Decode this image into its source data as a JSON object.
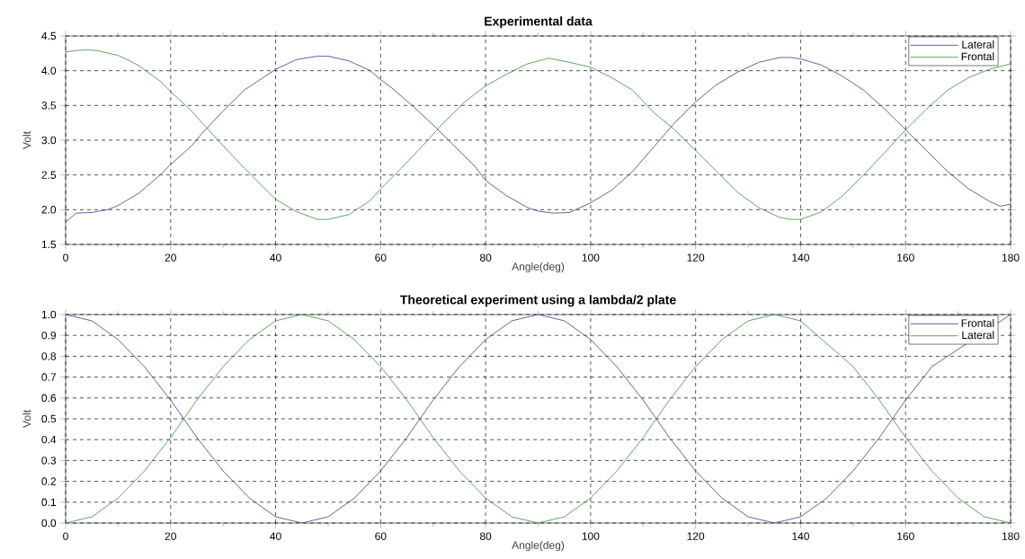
{
  "chart_data": [
    {
      "type": "line",
      "title": "Experimental data",
      "xlabel": "Angle(deg)",
      "ylabel": "Volt",
      "xlim": [
        0,
        180
      ],
      "ylim": [
        1.5,
        4.5
      ],
      "xticks": [
        0,
        20,
        40,
        60,
        80,
        100,
        120,
        140,
        160,
        180
      ],
      "yticks": [
        {
          "value": 1.5,
          "label": "1.5"
        },
        {
          "value": 2,
          "label": "2.0"
        },
        {
          "value": 2.5,
          "label": "2.5"
        },
        {
          "value": 3,
          "label": "3.0"
        },
        {
          "value": 3.5,
          "label": "3.5"
        },
        {
          "value": 4,
          "label": "4.0"
        },
        {
          "value": 4.5,
          "label": "4.5"
        }
      ],
      "grid": true,
      "legend": "top right",
      "series": [
        {
          "name": "Lateral",
          "color": "#3b3b8c",
          "x": [
            0,
            2,
            5,
            8,
            10,
            14,
            18,
            20,
            24,
            26,
            30,
            34,
            38,
            40,
            44,
            48,
            50,
            54,
            58,
            60,
            62,
            66,
            70,
            74,
            78,
            80,
            84,
            88,
            90,
            93,
            96,
            100,
            104,
            108,
            112,
            116,
            120,
            124,
            128,
            132,
            136,
            138,
            140,
            144,
            148,
            152,
            156,
            160,
            164,
            168,
            172,
            176,
            178,
            180
          ],
          "values": [
            1.82,
            1.95,
            1.96,
            2.0,
            2.06,
            2.24,
            2.5,
            2.65,
            2.92,
            3.1,
            3.42,
            3.72,
            3.92,
            4.02,
            4.16,
            4.21,
            4.21,
            4.14,
            4.0,
            3.87,
            3.76,
            3.5,
            3.22,
            2.92,
            2.62,
            2.42,
            2.2,
            2.03,
            1.98,
            1.95,
            1.96,
            2.1,
            2.28,
            2.55,
            2.9,
            3.25,
            3.55,
            3.8,
            3.98,
            4.12,
            4.19,
            4.19,
            4.17,
            4.08,
            3.92,
            3.72,
            3.45,
            3.15,
            2.85,
            2.55,
            2.3,
            2.12,
            2.05,
            2.08
          ]
        },
        {
          "name": "Frontal",
          "color": "#3d8c3d",
          "x": [
            0,
            2,
            4,
            6,
            10,
            12,
            14,
            18,
            20,
            24,
            26,
            30,
            34,
            38,
            40,
            44,
            48,
            50,
            54,
            58,
            60,
            64,
            68,
            72,
            76,
            80,
            84,
            88,
            92,
            96,
            100,
            104,
            108,
            112,
            116,
            120,
            124,
            128,
            132,
            136,
            138,
            140,
            144,
            148,
            152,
            156,
            160,
            164,
            168,
            172,
            176,
            180
          ],
          "values": [
            4.27,
            4.29,
            4.3,
            4.29,
            4.22,
            4.15,
            4.07,
            3.85,
            3.7,
            3.42,
            3.25,
            2.92,
            2.6,
            2.3,
            2.15,
            1.97,
            1.86,
            1.86,
            1.93,
            2.13,
            2.3,
            2.6,
            2.92,
            3.25,
            3.55,
            3.78,
            3.95,
            4.1,
            4.18,
            4.12,
            4.05,
            3.9,
            3.72,
            3.4,
            3.15,
            2.85,
            2.55,
            2.25,
            2.03,
            1.89,
            1.86,
            1.86,
            1.97,
            2.2,
            2.5,
            2.82,
            3.15,
            3.45,
            3.72,
            3.9,
            4.02,
            4.1
          ]
        }
      ]
    },
    {
      "type": "line",
      "title": "Theoretical experiment using a lambda/2 plate",
      "xlabel": "Angle(deg)",
      "ylabel": "Volt",
      "xlim": [
        0,
        180
      ],
      "ylim": [
        0,
        1
      ],
      "xticks": [
        0,
        20,
        40,
        60,
        80,
        100,
        120,
        140,
        160,
        180
      ],
      "yticks": [
        {
          "value": 0,
          "label": "0.0"
        },
        {
          "value": 0.1,
          "label": "0.1"
        },
        {
          "value": 0.2,
          "label": "0.2"
        },
        {
          "value": 0.3,
          "label": "0.3"
        },
        {
          "value": 0.4,
          "label": "0.4"
        },
        {
          "value": 0.5,
          "label": "0.5"
        },
        {
          "value": 0.6,
          "label": "0.6"
        },
        {
          "value": 0.7,
          "label": "0.7"
        },
        {
          "value": 0.8,
          "label": "0.8"
        },
        {
          "value": 0.9,
          "label": "0.9"
        },
        {
          "value": 1,
          "label": "1.0"
        }
      ],
      "grid": true,
      "legend": "top right",
      "x": [
        0,
        5,
        10,
        15,
        20,
        25,
        30,
        35,
        40,
        45,
        50,
        55,
        60,
        65,
        70,
        75,
        80,
        85,
        90,
        95,
        100,
        105,
        110,
        115,
        120,
        125,
        130,
        135,
        140,
        145,
        150,
        155,
        160,
        165,
        170,
        175,
        180
      ],
      "series": [
        {
          "name": "Frontal",
          "color": "#3b3b8c",
          "values": [
            1,
            0.97,
            0.88,
            0.75,
            0.59,
            0.41,
            0.25,
            0.12,
            0.03,
            0,
            0.03,
            0.12,
            0.25,
            0.41,
            0.59,
            0.75,
            0.88,
            0.97,
            1,
            0.97,
            0.88,
            0.75,
            0.59,
            0.41,
            0.25,
            0.12,
            0.03,
            0,
            0.03,
            0.12,
            0.25,
            0.41,
            0.59,
            0.75,
            null,
            null,
            1
          ]
        },
        {
          "name": "Lateral",
          "color": "#3d8c3d",
          "values": [
            0,
            0.03,
            0.12,
            0.25,
            0.41,
            0.59,
            0.75,
            0.88,
            0.97,
            1,
            0.97,
            0.88,
            0.75,
            0.59,
            0.41,
            0.25,
            0.12,
            0.03,
            0,
            0.03,
            0.12,
            0.25,
            0.41,
            0.59,
            0.75,
            0.88,
            0.97,
            1,
            0.97,
            null,
            0.75,
            0.59,
            0.41,
            0.25,
            0.12,
            0.03,
            0
          ]
        }
      ]
    }
  ]
}
